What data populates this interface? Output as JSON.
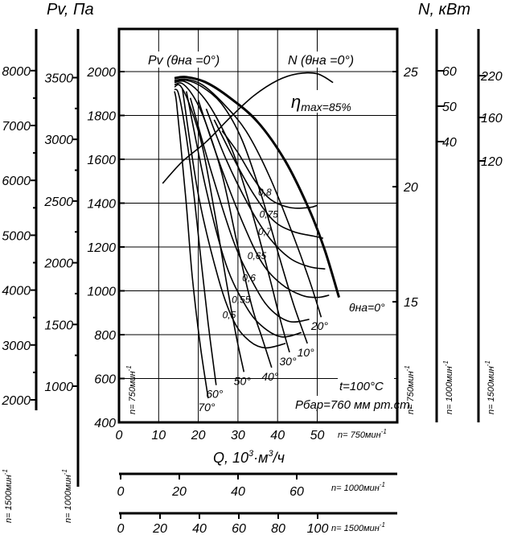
{
  "chart_data": {
    "type": "line",
    "title_left": "Pv, Па",
    "title_right": "N, кВт",
    "xlabel_text": "Q, 10",
    "xlabel_exp": "3",
    "xlabel_unit": "·м",
    "xlabel_unit_exp": "3",
    "xlabel_tail": "/ч",
    "xlim": [
      0,
      70
    ],
    "ylim": [
      400,
      2200
    ],
    "x_ticks": [
      "0",
      "10",
      "20",
      "30",
      "40",
      "50"
    ],
    "x_tick_values": [
      0,
      10,
      20,
      30,
      40,
      50
    ],
    "y_ticks": [
      "400",
      "600",
      "800",
      "1000",
      "1200",
      "1400",
      "1600",
      "1800",
      "2000"
    ],
    "y_tick_values": [
      400,
      600,
      800,
      1000,
      1200,
      1400,
      1600,
      1800,
      2000
    ],
    "axis_label_750_bottom": "n= 750мин",
    "axis_label_750_left": "n= 750мин",
    "axis_label_750_right": "n= 750мин",
    "power_axis_750_ticks": [
      "15",
      "20",
      "25"
    ],
    "power_axis_750_values": [
      15,
      20,
      25
    ],
    "power_axis_1000_ticks": [
      "40",
      "50",
      "60"
    ],
    "power_axis_1000_values": [
      40,
      50,
      60
    ],
    "power_axis_1000_label": "n= 1000мин",
    "power_axis_1500_ticks": [
      "120",
      "160",
      "220"
    ],
    "power_axis_1500_values": [
      120,
      160,
      220
    ],
    "power_axis_1500_label": "n= 1500мин",
    "pressure_axis_1000_ticks": [
      "1000",
      "1500",
      "2000",
      "2500",
      "3000",
      "3500"
    ],
    "pressure_axis_1000_values": [
      1000,
      1500,
      2000,
      2500,
      3000,
      3500
    ],
    "pressure_axis_1000_label": "n= 1000мин",
    "pressure_axis_1500_ticks": [
      "2000",
      "3000",
      "4000",
      "5000",
      "6000",
      "7000",
      "8000"
    ],
    "pressure_axis_1500_values": [
      2000,
      3000,
      4000,
      5000,
      6000,
      7000,
      8000
    ],
    "pressure_axis_1500_label": "n= 1500мин",
    "flow_axis_1000_ticks": [
      "0",
      "20",
      "40",
      "60"
    ],
    "flow_axis_1000_values": [
      0,
      20,
      40,
      60
    ],
    "flow_axis_1000_label": "n= 1000мин",
    "flow_axis_1500_ticks": [
      "0",
      "20",
      "40",
      "60",
      "80",
      "100"
    ],
    "flow_axis_1500_values": [
      0,
      20,
      40,
      60,
      80,
      100
    ],
    "flow_axis_1500_label": "n= 1500мин",
    "superscript": "-1",
    "label_pv": "Pv (θна =0°)",
    "label_n": "N (θна =0°)",
    "label_eta_symbol": "η",
    "label_eta_text": "max=85%",
    "label_theta0": "θна=0°",
    "note_t": "t=100°C",
    "note_p": "Pбар=760 мм рт.ст.",
    "series": [
      {
        "name": "θна=0°",
        "x": [
          14,
          17,
          22,
          28,
          35,
          42,
          48,
          52,
          55.5
        ],
        "y": [
          1970,
          1975,
          1950,
          1880,
          1770,
          1590,
          1370,
          1180,
          970
        ]
      },
      {
        "name": "20°",
        "x": [
          14,
          17,
          21,
          26,
          32,
          38,
          44,
          48,
          51
        ],
        "y": [
          1960,
          1965,
          1940,
          1860,
          1730,
          1520,
          1250,
          1050,
          880
        ]
      },
      {
        "name": "10°",
        "x": [
          14,
          17,
          21,
          26,
          31,
          36,
          40.5,
          44,
          47.5
        ],
        "y": [
          1955,
          1960,
          1930,
          1850,
          1690,
          1430,
          1150,
          940,
          760
        ]
      },
      {
        "name": "30°",
        "x": [
          14,
          16.5,
          20,
          24,
          29,
          34,
          38,
          40.5,
          43
        ],
        "y": [
          1950,
          1955,
          1910,
          1810,
          1620,
          1330,
          1060,
          880,
          720
        ]
      },
      {
        "name": "40°",
        "x": [
          14,
          16,
          19,
          22,
          26,
          30,
          33.5,
          36,
          38.5
        ],
        "y": [
          1940,
          1945,
          1880,
          1760,
          1530,
          1200,
          930,
          790,
          650
        ]
      },
      {
        "name": "50°",
        "x": [
          14,
          15.5,
          18,
          21,
          24,
          27,
          29.5,
          31.5
        ],
        "y": [
          1930,
          1935,
          1840,
          1660,
          1370,
          1050,
          800,
          630
        ]
      },
      {
        "name": "60°",
        "x": [
          14,
          15,
          16.5,
          18.5,
          20.5,
          22.5,
          24.5
        ],
        "y": [
          1920,
          1900,
          1760,
          1500,
          1170,
          850,
          570
        ]
      },
      {
        "name": "70°",
        "x": [
          14,
          14.5,
          15.5,
          17,
          18.5,
          20.5,
          22.5
        ],
        "y": [
          1910,
          1860,
          1680,
          1390,
          1060,
          750,
          510
        ]
      },
      {
        "name": "N (θна =0°)",
        "x": [
          11,
          16,
          22,
          28,
          34,
          40,
          45,
          50,
          54
        ],
        "y": [
          1490,
          1590,
          1680,
          1790,
          1890,
          1960,
          1990,
          1990,
          1950
        ]
      },
      {
        "name": "0,8",
        "x": [
          26,
          30,
          34,
          38,
          43,
          48,
          50
        ],
        "y": [
          1730,
          1630,
          1510,
          1420,
          1380,
          1380,
          1390
        ]
      },
      {
        "name": "0,75",
        "x": [
          24,
          29,
          34,
          39,
          44,
          49,
          51.5
        ],
        "y": [
          1780,
          1600,
          1440,
          1320,
          1270,
          1250,
          1240
        ]
      },
      {
        "name": "0,7",
        "x": [
          22,
          27,
          33,
          38,
          43,
          48,
          52
        ],
        "y": [
          1830,
          1600,
          1380,
          1240,
          1150,
          1110,
          1100
        ]
      },
      {
        "name": "0,65",
        "x": [
          20,
          25,
          31,
          36,
          41,
          46,
          50,
          53
        ],
        "y": [
          1870,
          1600,
          1320,
          1130,
          1030,
          980,
          970,
          980
        ]
      },
      {
        "name": "0,6",
        "x": [
          18,
          23,
          29,
          34,
          38,
          43,
          48
        ],
        "y": [
          1880,
          1560,
          1220,
          1030,
          920,
          860,
          870
        ]
      },
      {
        "name": "0,55",
        "x": [
          17,
          22,
          27,
          32,
          36,
          41,
          46
        ],
        "y": [
          1910,
          1460,
          1120,
          930,
          840,
          790,
          810
        ]
      },
      {
        "name": "0,5",
        "x": [
          16,
          20,
          25,
          29,
          33,
          37,
          42
        ],
        "y": [
          1920,
          1440,
          1060,
          860,
          770,
          740,
          760
        ]
      }
    ]
  }
}
